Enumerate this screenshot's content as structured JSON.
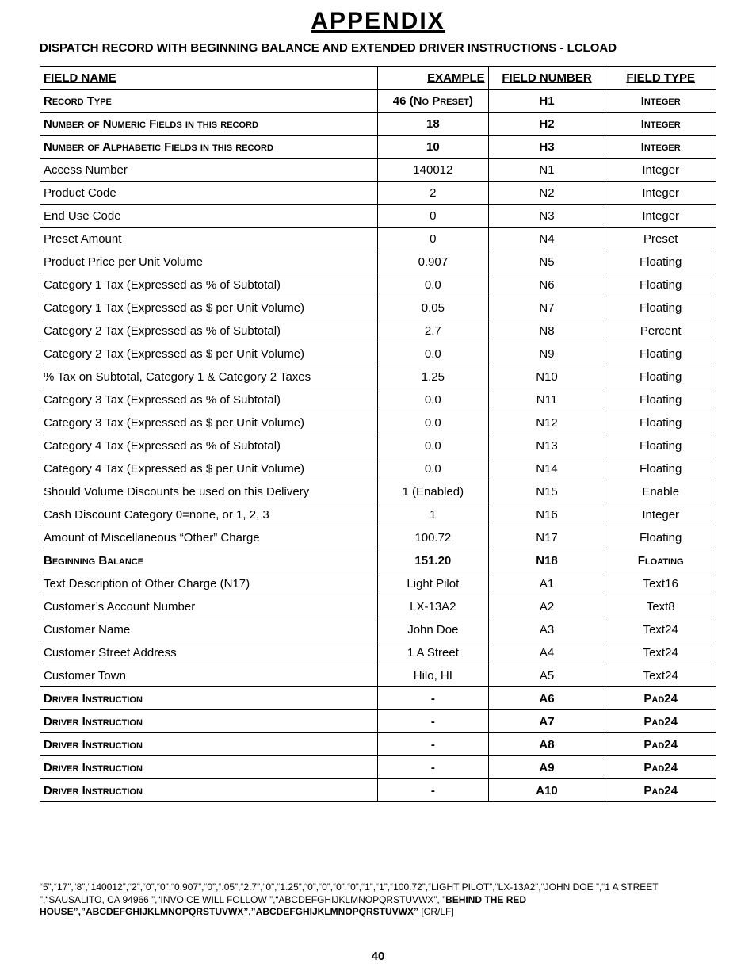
{
  "title": "APPENDIX",
  "subtitle": "DISPATCH RECORD WITH BEGINNING BALANCE AND EXTENDED DRIVER INSTRUCTIONS - LCLOAD",
  "columns": {
    "field_name": "FIELD NAME",
    "example": "EXAMPLE",
    "field_number": "FIELD NUMBER",
    "field_type": "FIELD TYPE"
  },
  "rows": [
    {
      "name": "Record Type",
      "example": "46 (No Preset)",
      "num": "H1",
      "type": "Integer",
      "bold": true,
      "sc": true
    },
    {
      "name": "Number of Numeric Fields in this record",
      "example": "18",
      "num": "H2",
      "type": "Integer",
      "bold": true,
      "sc": true
    },
    {
      "name": "Number of Alphabetic Fields in this record",
      "example": "10",
      "num": "H3",
      "type": "Integer",
      "bold": true,
      "sc": true
    },
    {
      "name": "Access Number",
      "example": "140012",
      "num": "N1",
      "type": "Integer",
      "bold": false,
      "sc": false
    },
    {
      "name": "Product Code",
      "example": "2",
      "num": "N2",
      "type": "Integer",
      "bold": false,
      "sc": false
    },
    {
      "name": "End Use Code",
      "example": "0",
      "num": "N3",
      "type": "Integer",
      "bold": false,
      "sc": false
    },
    {
      "name": "Preset Amount",
      "example": "0",
      "num": "N4",
      "type": "Preset",
      "bold": false,
      "sc": false
    },
    {
      "name": "Product Price per Unit Volume",
      "example": "0.907",
      "num": "N5",
      "type": "Floating",
      "bold": false,
      "sc": false
    },
    {
      "name": "Category 1 Tax (Expressed as % of Subtotal)",
      "example": "0.0",
      "num": "N6",
      "type": "Floating",
      "bold": false,
      "sc": false
    },
    {
      "name": "Category 1 Tax (Expressed as $ per Unit Volume)",
      "example": "0.05",
      "num": "N7",
      "type": "Floating",
      "bold": false,
      "sc": false
    },
    {
      "name": "Category 2 Tax (Expressed as % of Subtotal)",
      "example": "2.7",
      "num": "N8",
      "type": "Percent",
      "bold": false,
      "sc": false
    },
    {
      "name": "Category 2 Tax (Expressed as $ per Unit Volume)",
      "example": "0.0",
      "num": "N9",
      "type": "Floating",
      "bold": false,
      "sc": false
    },
    {
      "name": "% Tax on Subtotal, Category 1 & Category 2 Taxes",
      "example": "1.25",
      "num": "N10",
      "type": "Floating",
      "bold": false,
      "sc": false
    },
    {
      "name": "Category 3 Tax (Expressed as % of Subtotal)",
      "example": "0.0",
      "num": "N11",
      "type": "Floating",
      "bold": false,
      "sc": false
    },
    {
      "name": "Category 3 Tax (Expressed as $ per Unit Volume)",
      "example": "0.0",
      "num": "N12",
      "type": "Floating",
      "bold": false,
      "sc": false
    },
    {
      "name": "Category 4 Tax (Expressed as % of Subtotal)",
      "example": "0.0",
      "num": "N13",
      "type": "Floating",
      "bold": false,
      "sc": false
    },
    {
      "name": "Category 4 Tax (Expressed as $ per Unit Volume)",
      "example": "0.0",
      "num": "N14",
      "type": "Floating",
      "bold": false,
      "sc": false
    },
    {
      "name": "Should Volume Discounts be used on this Delivery",
      "example": "1 (Enabled)",
      "num": "N15",
      "type": "Enable",
      "bold": false,
      "sc": false
    },
    {
      "name": "Cash Discount Category 0=none, or 1, 2, 3",
      "example": "1",
      "num": "N16",
      "type": "Integer",
      "bold": false,
      "sc": false
    },
    {
      "name": "Amount of Miscellaneous “Other” Charge",
      "example": "100.72",
      "num": "N17",
      "type": "Floating",
      "bold": false,
      "sc": false
    },
    {
      "name": "Beginning Balance",
      "example": "151.20",
      "num": "N18",
      "type": "Floating",
      "bold": true,
      "sc": true
    },
    {
      "name": "Text Description of Other Charge (N17)",
      "example": "Light Pilot",
      "num": "A1",
      "type": "Text16",
      "bold": false,
      "sc": false
    },
    {
      "name": "Customer’s Account Number",
      "example": "LX-13A2",
      "num": "A2",
      "type": "Text8",
      "bold": false,
      "sc": false
    },
    {
      "name": "Customer Name",
      "example": "John Doe",
      "num": "A3",
      "type": "Text24",
      "bold": false,
      "sc": false
    },
    {
      "name": "Customer Street Address",
      "example": "1 A Street",
      "num": "A4",
      "type": "Text24",
      "bold": false,
      "sc": false
    },
    {
      "name": "Customer Town",
      "example": "Hilo, HI",
      "num": "A5",
      "type": "Text24",
      "bold": false,
      "sc": false
    },
    {
      "name": "Driver Instruction",
      "example": "-",
      "num": "A6",
      "type": "Pad24",
      "bold": true,
      "sc": true
    },
    {
      "name": "Driver Instruction",
      "example": "-",
      "num": "A7",
      "type": "Pad24",
      "bold": true,
      "sc": true
    },
    {
      "name": "Driver Instruction",
      "example": "-",
      "num": "A8",
      "type": "Pad24",
      "bold": true,
      "sc": true
    },
    {
      "name": "Driver Instruction",
      "example": "-",
      "num": "A9",
      "type": "Pad24",
      "bold": true,
      "sc": true
    },
    {
      "name": "Driver Instruction",
      "example": "-",
      "num": "A10",
      "type": "Pad24",
      "bold": true,
      "sc": true
    }
  ],
  "footer": {
    "part1": "“5”,“17”,“8”,“140012”,“2”,“0”,“0”,“0.907”,“0”,“.05”,“2.7”,“0”,“1.25”,“0”,“0”,“0”,“0”,“1”,“1”,“100.72”,“LIGHT PILOT”,“LX-13A2”,“JOHN DOE    ”,“1 A STREET    ”,“SAUSALITO, CA 94966   ”,“INVOICE WILL FOLLOW  ”,“ABCDEFGHIJKLMNOPQRSTUVWX”, ”",
    "part2_bold": "BEHIND THE RED HOUSE”,”ABCDEFGHIJKLMNOPQRSTUVWX”,”ABCDEFGHIJKLMNOPQRSTUVWX”",
    "part3": " [CR/LF]"
  },
  "page_number": "40"
}
